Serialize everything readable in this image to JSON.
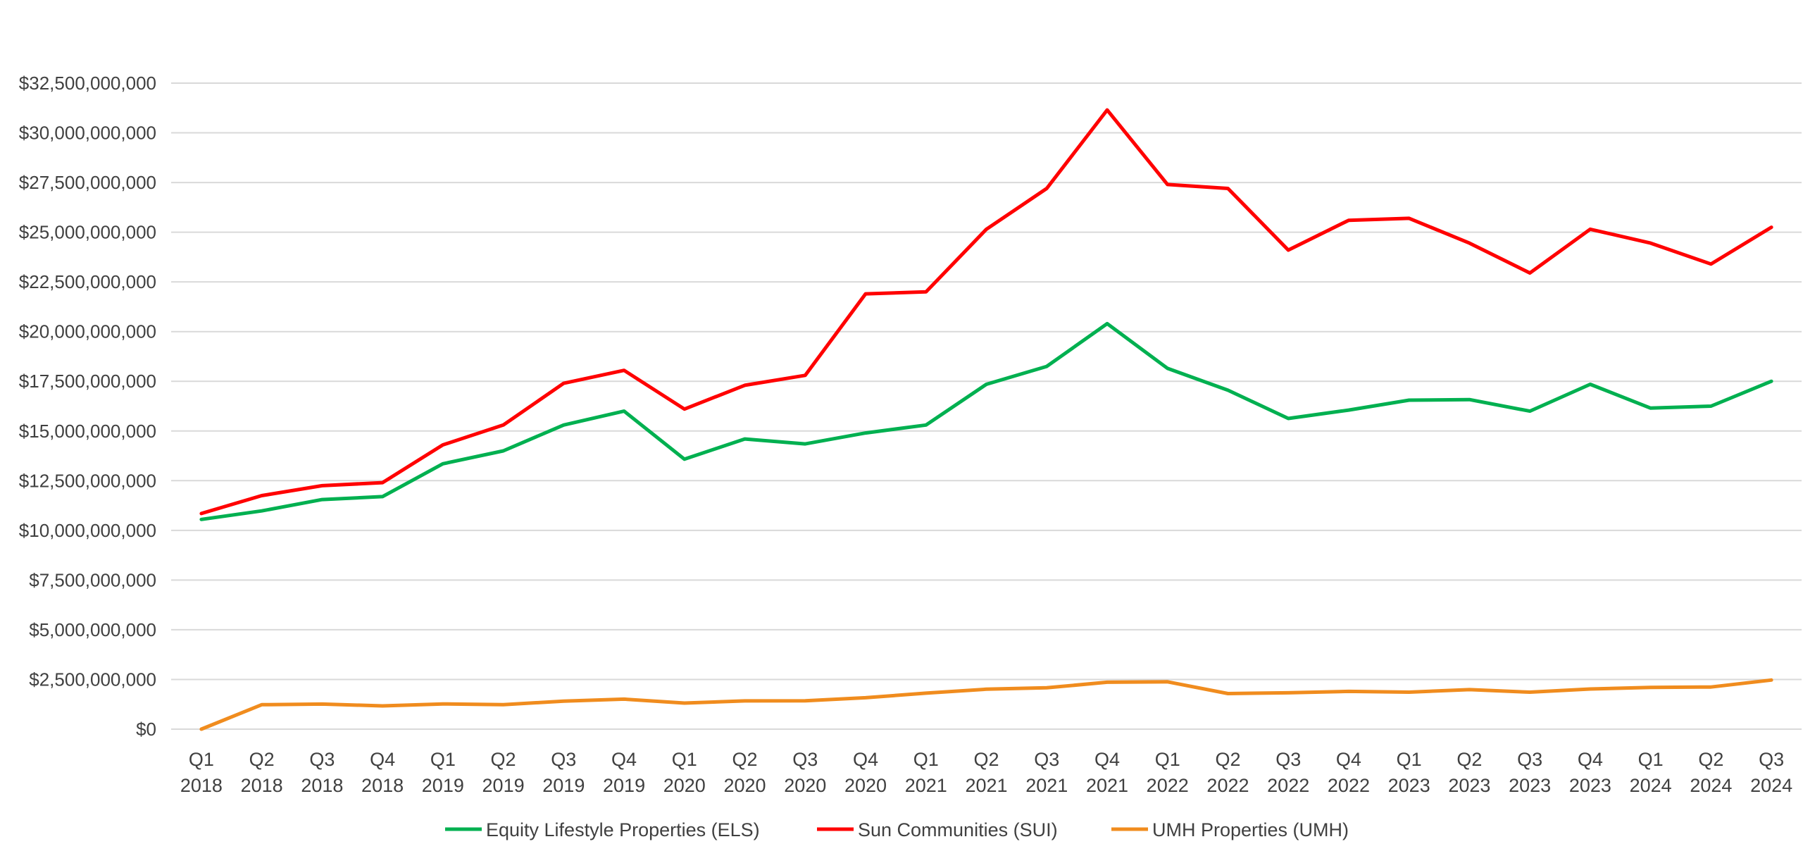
{
  "chart_data": {
    "type": "line",
    "title": "",
    "xlabel": "",
    "ylabel": "",
    "ylim": [
      0,
      32500000000
    ],
    "yticks": [
      0,
      2500000000,
      5000000000,
      7500000000,
      10000000000,
      12500000000,
      15000000000,
      17500000000,
      20000000000,
      22500000000,
      25000000000,
      27500000000,
      30000000000,
      32500000000
    ],
    "ytick_labels": [
      "$0",
      "$2,500,000,000",
      "$5,000,000,000",
      "$7,500,000,000",
      "$10,000,000,000",
      "$12,500,000,000",
      "$15,000,000,000",
      "$17,500,000,000",
      "$20,000,000,000",
      "$22,500,000,000",
      "$25,000,000,000",
      "$27,500,000,000",
      "$30,000,000,000",
      "$32,500,000,000"
    ],
    "grid": true,
    "legend_position": "bottom",
    "categories": [
      {
        "q": "Q1",
        "y": "2018"
      },
      {
        "q": "Q2",
        "y": "2018"
      },
      {
        "q": "Q3",
        "y": "2018"
      },
      {
        "q": "Q4",
        "y": "2018"
      },
      {
        "q": "Q1",
        "y": "2019"
      },
      {
        "q": "Q2",
        "y": "2019"
      },
      {
        "q": "Q3",
        "y": "2019"
      },
      {
        "q": "Q4",
        "y": "2019"
      },
      {
        "q": "Q1",
        "y": "2020"
      },
      {
        "q": "Q2",
        "y": "2020"
      },
      {
        "q": "Q3",
        "y": "2020"
      },
      {
        "q": "Q4",
        "y": "2020"
      },
      {
        "q": "Q1",
        "y": "2021"
      },
      {
        "q": "Q2",
        "y": "2021"
      },
      {
        "q": "Q3",
        "y": "2021"
      },
      {
        "q": "Q4",
        "y": "2021"
      },
      {
        "q": "Q1",
        "y": "2022"
      },
      {
        "q": "Q2",
        "y": "2022"
      },
      {
        "q": "Q3",
        "y": "2022"
      },
      {
        "q": "Q4",
        "y": "2022"
      },
      {
        "q": "Q1",
        "y": "2023"
      },
      {
        "q": "Q2",
        "y": "2023"
      },
      {
        "q": "Q3",
        "y": "2023"
      },
      {
        "q": "Q4",
        "y": "2023"
      },
      {
        "q": "Q1",
        "y": "2024"
      },
      {
        "q": "Q2",
        "y": "2024"
      },
      {
        "q": "Q3",
        "y": "2024"
      }
    ],
    "series": [
      {
        "name": "Equity Lifestyle Properties (ELS)",
        "color": "#00b050",
        "values": [
          10550000000,
          10980000000,
          11550000000,
          11700000000,
          13350000000,
          14000000000,
          15300000000,
          16000000000,
          13580000000,
          14600000000,
          14350000000,
          14900000000,
          15300000000,
          17350000000,
          18250000000,
          20400000000,
          18150000000,
          17050000000,
          15630000000,
          16050000000,
          16550000000,
          16580000000,
          16000000000,
          17350000000,
          16150000000,
          16250000000,
          17500000000
        ]
      },
      {
        "name": "Sun Communities (SUI)",
        "color": "#ff0000",
        "values": [
          10850000000,
          11750000000,
          12250000000,
          12400000000,
          14300000000,
          15300000000,
          17400000000,
          18050000000,
          16100000000,
          17300000000,
          17800000000,
          21900000000,
          22000000000,
          25150000000,
          27200000000,
          31150000000,
          27400000000,
          27200000000,
          24100000000,
          25600000000,
          25700000000,
          24450000000,
          22950000000,
          25150000000,
          24450000000,
          23400000000,
          25250000000
        ]
      },
      {
        "name": "UMH Properties (UMH)",
        "color": "#f08c1e",
        "values": [
          0,
          1230000000,
          1260000000,
          1170000000,
          1270000000,
          1230000000,
          1410000000,
          1510000000,
          1310000000,
          1420000000,
          1430000000,
          1580000000,
          1810000000,
          2010000000,
          2080000000,
          2360000000,
          2380000000,
          1790000000,
          1830000000,
          1900000000,
          1860000000,
          1990000000,
          1860000000,
          2020000000,
          2100000000,
          2120000000,
          2470000000
        ]
      }
    ]
  }
}
